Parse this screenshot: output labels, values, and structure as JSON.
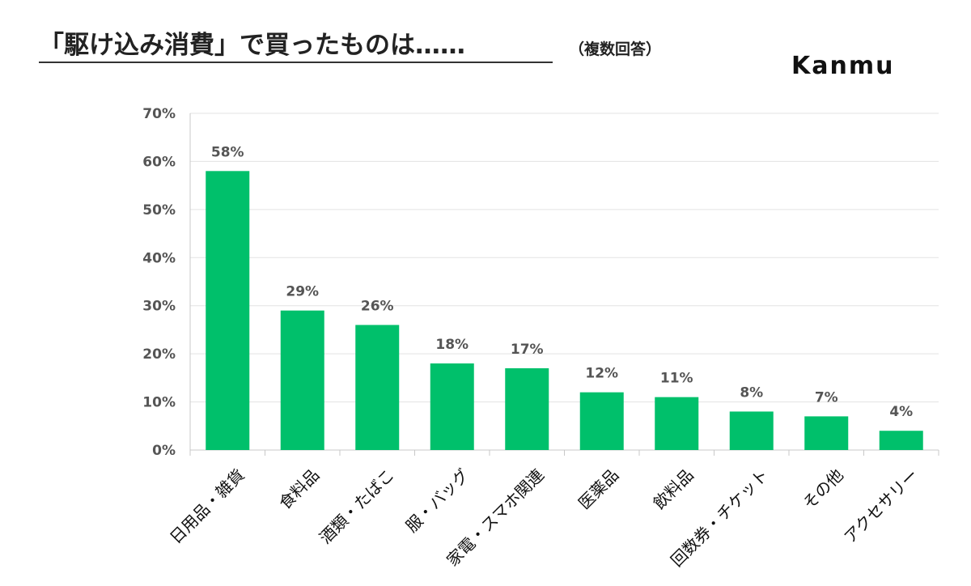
{
  "header": {
    "title": "「駆け込み消費」で買ったものは……",
    "subtitle": "（複数回答）",
    "logo": "Kanmu"
  },
  "colors": {
    "bar": "#00c06b",
    "grid": "#e3e3e3",
    "axis": "#c8c8c8"
  },
  "chart_data": {
    "type": "bar",
    "categories": [
      "日用品・雑貨",
      "食料品",
      "酒類・たばこ",
      "服・バッグ",
      "家電・スマホ関連",
      "医薬品",
      "飲料品",
      "回数券・チケット",
      "その他",
      "アクセサリー"
    ],
    "values": [
      58,
      29,
      26,
      18,
      17,
      12,
      11,
      8,
      7,
      4
    ],
    "data_labels": [
      "58%",
      "29%",
      "26%",
      "18%",
      "17%",
      "12%",
      "11%",
      "8%",
      "7%",
      "4%"
    ],
    "y_ticks": [
      "0%",
      "10%",
      "20%",
      "30%",
      "40%",
      "50%",
      "60%",
      "70%"
    ],
    "ylim": [
      0,
      70
    ],
    "grid": true,
    "legend": false
  }
}
